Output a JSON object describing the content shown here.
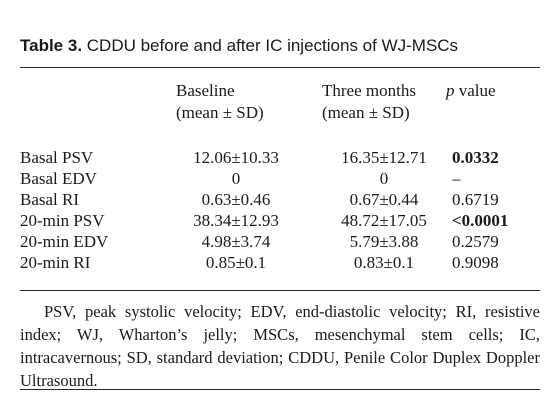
{
  "caption": {
    "label": "Table 3.",
    "text": " CDDU before and after IC injections of WJ-MSCs"
  },
  "headers": {
    "baseline": [
      "Baseline",
      "(mean ± SD)"
    ],
    "three": [
      "Three months",
      "(mean ± SD)"
    ],
    "p_italic": "p",
    "p_rest": " value"
  },
  "rows": [
    {
      "label": "Basal PSV",
      "baseline": "12.06±10.33",
      "three": "16.35±12.71",
      "p": "0.0332",
      "p_bold": true
    },
    {
      "label": "Basal EDV",
      "baseline": "0",
      "three": "0",
      "p": "–",
      "p_bold": false
    },
    {
      "label": "Basal RI",
      "baseline": "0.63±0.46",
      "three": "0.67±0.44",
      "p": "0.6719",
      "p_bold": false
    },
    {
      "label": "20-min PSV",
      "baseline": "38.34±12.93",
      "three": "48.72±17.05",
      "p": "<0.0001",
      "p_bold": true
    },
    {
      "label": "20-min EDV",
      "baseline": "4.98±3.74",
      "three": "5.79±3.88",
      "p": "0.2579",
      "p_bold": false
    },
    {
      "label": "20-min RI",
      "baseline": "0.85±0.1",
      "three": "0.83±0.1",
      "p": "0.9098",
      "p_bold": false
    }
  ],
  "footnote": "PSV, peak systolic velocity; EDV, end-diastolic velocity; RI, resistive index; WJ, Wharton’s jelly; MSCs, mesenchymal stem cells; IC, intracavernous; SD, standard deviation; CDDU, Penile Color Duplex Doppler Ultrasound."
}
